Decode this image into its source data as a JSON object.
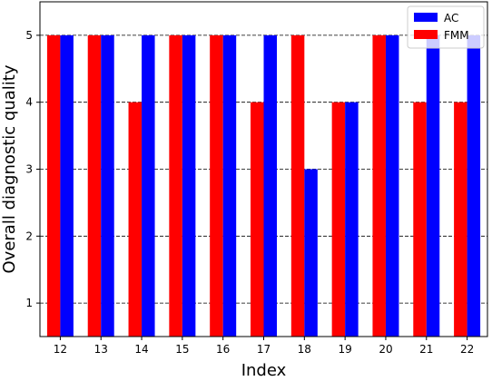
{
  "chart_data": {
    "type": "bar",
    "title": "",
    "xlabel": "Index",
    "ylabel": "Overall diagnostic quality",
    "categories": [
      "12",
      "13",
      "14",
      "15",
      "16",
      "17",
      "18",
      "19",
      "20",
      "21",
      "22"
    ],
    "series": [
      {
        "name": "FMM",
        "color": "#ff0000",
        "values": [
          5,
          5,
          4,
          5,
          5,
          4,
          5,
          4,
          5,
          4,
          4
        ]
      },
      {
        "name": "AC",
        "color": "#0000ff",
        "values": [
          5,
          5,
          5,
          5,
          5,
          5,
          3,
          4,
          5,
          5,
          5
        ]
      }
    ],
    "yticks": [
      "1",
      "2",
      "3",
      "4",
      "5"
    ],
    "ylim": [
      0.5,
      5.5
    ],
    "grid": "y-dashed",
    "legend": {
      "position": "top-right",
      "order": [
        "AC",
        "FMM"
      ]
    }
  }
}
